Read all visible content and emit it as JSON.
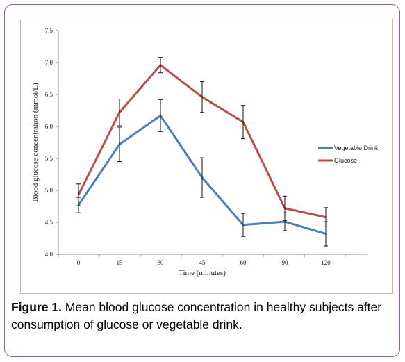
{
  "chart_data": {
    "type": "line",
    "title": "",
    "xlabel": "Time (minutes)",
    "ylabel": "Blood glucose concentration (mmol/L)",
    "categories": [
      "0",
      "15",
      "30",
      "45",
      "60",
      "90",
      "120"
    ],
    "ylim": [
      4.0,
      7.5
    ],
    "yticks": [
      "4.0",
      "4.5",
      "5.0",
      "5.5",
      "6.0",
      "6.5",
      "7.0",
      "7.5"
    ],
    "grid": false,
    "legend_position": "right",
    "series": [
      {
        "name": "Vegetable Drink",
        "color": "#4a7ebb",
        "values": [
          4.77,
          5.72,
          6.17,
          5.2,
          4.46,
          4.51,
          4.32
        ],
        "err": [
          0.12,
          0.27,
          0.25,
          0.31,
          0.18,
          0.14,
          0.19
        ]
      },
      {
        "name": "Glucose",
        "color": "#be4b48",
        "values": [
          4.93,
          6.22,
          6.96,
          6.46,
          6.07,
          4.72,
          4.58
        ],
        "err": [
          0.17,
          0.21,
          0.12,
          0.24,
          0.26,
          0.19,
          0.15
        ]
      }
    ]
  },
  "caption": {
    "label": "Figure 1.",
    "text": " Mean blood glucose concentration in healthy subjects after consumption of glucose or vegetable drink."
  },
  "colors": {
    "frame_border": "#a3549b"
  }
}
